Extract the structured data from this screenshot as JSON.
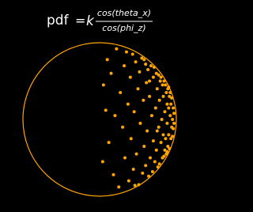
{
  "chart_data": {
    "type": "scatter",
    "title": {
      "lhs": "pdf",
      "eq": "=",
      "k": "k",
      "numerator": "cos(theta_x)",
      "denominator": "cos(phi_z)"
    },
    "color": "#ffa500",
    "xlim": [
      -1,
      1
    ],
    "ylim": [
      -1,
      1
    ],
    "x": [
      0.05,
      0.08,
      0.04,
      0.1,
      0.12,
      0.15,
      0.18,
      0.2,
      0.22,
      0.25,
      0.27,
      0.3,
      0.32,
      0.33,
      0.35,
      0.37,
      0.38,
      0.4,
      0.41,
      0.43,
      0.44,
      0.45,
      0.47,
      0.48,
      0.5,
      0.51,
      0.52,
      0.53,
      0.55,
      0.56,
      0.57,
      0.58,
      0.6,
      0.6,
      0.61,
      0.62,
      0.63,
      0.64,
      0.65,
      0.66,
      0.67,
      0.68,
      0.69,
      0.7,
      0.7,
      0.71,
      0.72,
      0.73,
      0.74,
      0.74,
      0.75,
      0.76,
      0.77,
      0.77,
      0.78,
      0.78,
      0.79,
      0.8,
      0.8,
      0.81,
      0.82,
      0.82,
      0.83,
      0.83,
      0.84,
      0.84,
      0.85,
      0.85,
      0.86,
      0.86,
      0.87,
      0.87,
      0.88,
      0.88,
      0.89,
      0.89,
      0.9,
      0.9,
      0.91,
      0.91,
      0.92,
      0.92,
      0.93,
      0.93,
      0.94,
      0.94,
      0.95,
      0.95,
      0.96,
      0.96,
      0.97,
      0.97,
      0.9,
      0.88,
      0.75,
      0.65,
      0.58,
      0.46
    ],
    "y": [
      0.45,
      0.12,
      -0.55,
      0.78,
      -0.3,
      0.6,
      -0.72,
      0.05,
      0.92,
      -0.88,
      0.35,
      -0.1,
      0.7,
      -0.5,
      0.88,
      0.2,
      -0.8,
      0.55,
      -0.25,
      0.85,
      -0.65,
      0.1,
      0.75,
      -0.45,
      0.4,
      -0.85,
      0.62,
      -0.05,
      0.8,
      -0.7,
      0.25,
      -0.35,
      0.72,
      -0.6,
      0.48,
      -0.15,
      0.65,
      -0.74,
      0.3,
      -0.5,
      0.7,
      0.05,
      -0.68,
      0.55,
      -0.28,
      0.68,
      -0.55,
      0.15,
      0.6,
      -0.4,
      0.4,
      -0.62,
      0.58,
      -0.1,
      0.25,
      -0.58,
      0.5,
      -0.3,
      0.55,
      0.0,
      -0.5,
      0.45,
      0.3,
      -0.2,
      -0.48,
      0.5,
      0.1,
      -0.4,
      0.45,
      -0.25,
      0.35,
      -0.45,
      0.2,
      -0.05,
      0.4,
      -0.35,
      0.15,
      -0.2,
      0.3,
      -0.38,
      0.05,
      0.35,
      -0.25,
      0.2,
      -0.1,
      0.28,
      0.0,
      -0.22,
      0.15,
      -0.12,
      0.08,
      -0.05,
      0.42,
      -0.42,
      -0.15,
      0.5,
      0.78,
      -0.86
    ]
  }
}
